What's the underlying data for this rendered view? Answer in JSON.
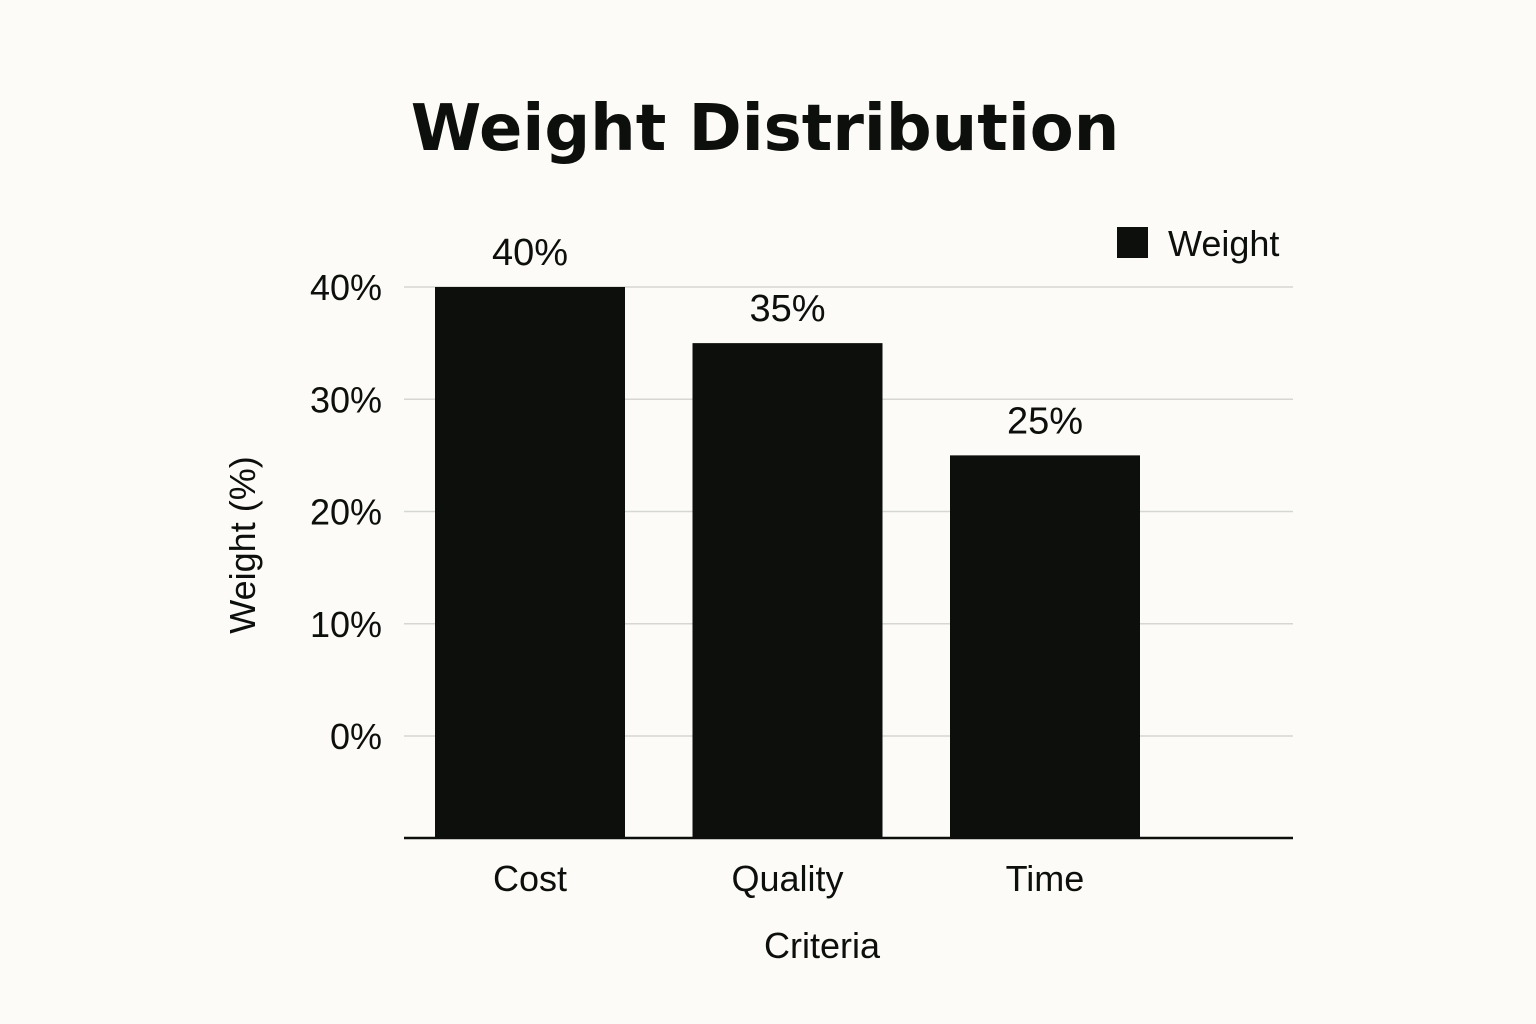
{
  "chart_data": {
    "type": "bar",
    "title": "Weight Distribution",
    "xlabel": "Criteria",
    "ylabel": "Weight (%)",
    "categories": [
      "Cost",
      "Quality",
      "Time"
    ],
    "series": [
      {
        "name": "Weight",
        "values": [
          40,
          35,
          25
        ],
        "color": "#0d0f0d"
      }
    ],
    "data_labels": [
      "40%",
      "35%",
      "25%"
    ],
    "yticks": [
      0,
      10,
      20,
      30,
      40
    ],
    "ytick_labels": [
      "0%",
      "10%",
      "20%",
      "30%",
      "40%"
    ],
    "ylim": [
      0,
      40
    ],
    "grid": true,
    "legend": {
      "position": "top-right",
      "entries": [
        "Weight"
      ]
    }
  }
}
